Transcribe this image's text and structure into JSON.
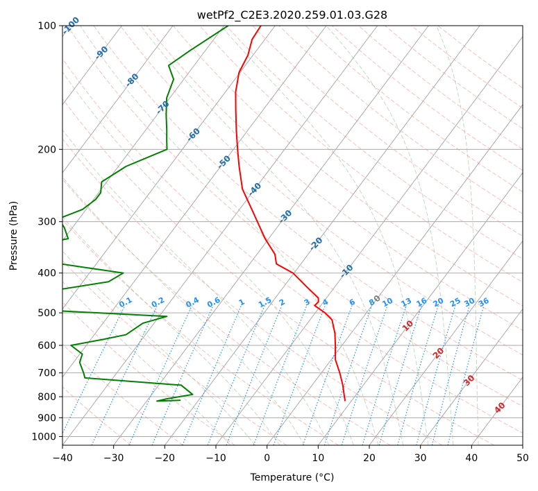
{
  "chart_data": {
    "type": "line",
    "title": "wetPf2_C2E3.2020.259.01.03.G28",
    "xlabel": "Temperature (°C)",
    "ylabel": "Pressure (hPa)",
    "xlim": [
      -40,
      50
    ],
    "ylim": [
      1050,
      100
    ],
    "log_y": true,
    "skew": "skew-T log-p",
    "grid": true,
    "x_ticks": [
      -40,
      -30,
      -20,
      -10,
      0,
      10,
      20,
      30,
      40,
      50
    ],
    "y_ticks": [
      100,
      200,
      300,
      400,
      500,
      600,
      700,
      800,
      900,
      1000
    ],
    "isotherm_labels": [
      "-100",
      "-90",
      "-80",
      "-70",
      "-60",
      "-50",
      "-40",
      "-30",
      "-20",
      "-10",
      "0",
      "10",
      "20",
      "30",
      "40"
    ],
    "mixing_ratio_labels": [
      "0.1",
      "0.2",
      "0.4",
      "0.6",
      "1",
      "1.5",
      "2",
      "3",
      "4",
      "6",
      "8",
      "10",
      "13",
      "16",
      "20",
      "25",
      "30",
      "36"
    ],
    "colors": {
      "temperature": "#ff0000",
      "dewpoint": "#008000",
      "dry_adiabat": "#fa8072",
      "moist_adiabat": "#8fbc8f",
      "mixing_ratio": "#1e90ff",
      "isotherm_label_cold": "#1f6fb0",
      "isotherm_label_zero": "#808080",
      "isotherm_label_warm": "#d62728",
      "grid": "#aaaaaa"
    },
    "series": [
      {
        "role": "temperature",
        "color": "#ff0000",
        "points": [
          [
            100,
            -62.8
          ],
          [
            108,
            -62.5
          ],
          [
            118,
            -61.0
          ],
          [
            130,
            -60.2
          ],
          [
            145,
            -58.0
          ],
          [
            160,
            -55.4
          ],
          [
            180,
            -52.2
          ],
          [
            200,
            -49.2
          ],
          [
            220,
            -46.4
          ],
          [
            250,
            -42.4
          ],
          [
            280,
            -37.6
          ],
          [
            300,
            -34.7
          ],
          [
            330,
            -30.7
          ],
          [
            360,
            -26.5
          ],
          [
            380,
            -24.8
          ],
          [
            400,
            -20.2
          ],
          [
            430,
            -15.8
          ],
          [
            460,
            -11.6
          ],
          [
            470,
            -11.0
          ],
          [
            480,
            -11.2
          ],
          [
            500,
            -8.1
          ],
          [
            520,
            -5.7
          ],
          [
            560,
            -3.2
          ],
          [
            600,
            -1.3
          ],
          [
            650,
            0.8
          ],
          [
            700,
            3.6
          ],
          [
            750,
            6.0
          ],
          [
            800,
            8.0
          ],
          [
            820,
            8.8
          ]
        ]
      },
      {
        "role": "dewpoint",
        "color": "#008000",
        "points": [
          [
            100,
            -69.2
          ],
          [
            115,
            -73.0
          ],
          [
            125,
            -75.0
          ],
          [
            135,
            -72.0
          ],
          [
            150,
            -70.6
          ],
          [
            165,
            -68.2
          ],
          [
            180,
            -65.8
          ],
          [
            190,
            -64.4
          ],
          [
            200,
            -63.0
          ],
          [
            220,
            -68.5
          ],
          [
            240,
            -71.0
          ],
          [
            255,
            -69.6
          ],
          [
            265,
            -69.6
          ],
          [
            280,
            -70.7
          ],
          [
            295,
            -74.0
          ],
          [
            310,
            -71.6
          ],
          [
            330,
            -69.2
          ],
          [
            350,
            -79.0
          ],
          [
            365,
            -79.0
          ],
          [
            373,
            -79.0
          ],
          [
            380,
            -67.0
          ],
          [
            400,
            -53.4
          ],
          [
            420,
            -55.0
          ],
          [
            440,
            -64.0
          ],
          [
            460,
            -80.0
          ],
          [
            480,
            -77.5
          ],
          [
            490,
            -67.0
          ],
          [
            510,
            -38.5
          ],
          [
            530,
            -42.2
          ],
          [
            565,
            -43.8
          ],
          [
            580,
            -47.5
          ],
          [
            600,
            -53.0
          ],
          [
            630,
            -49.5
          ],
          [
            660,
            -48.8
          ],
          [
            700,
            -46.5
          ],
          [
            720,
            -45.5
          ],
          [
            750,
            -25.6
          ],
          [
            790,
            -22.0
          ],
          [
            810,
            -26.5
          ],
          [
            820,
            -28.0
          ],
          [
            816,
            -23.5
          ]
        ]
      }
    ]
  }
}
